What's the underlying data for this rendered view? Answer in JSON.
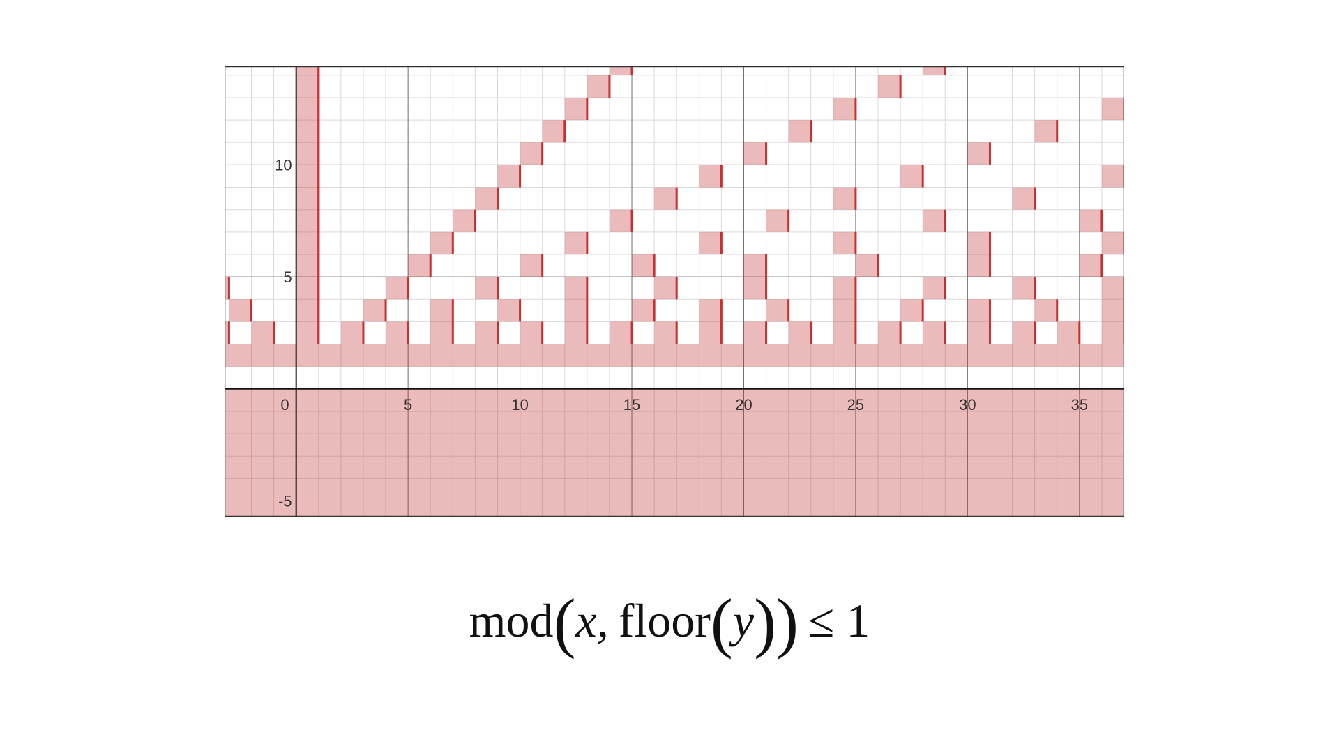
{
  "chart_data": {
    "type": "region",
    "title": "",
    "xlabel": "",
    "ylabel": "",
    "xlim": [
      -3.2,
      37
    ],
    "ylim": [
      -5.7,
      14.4
    ],
    "x_ticks": [
      0,
      5,
      10,
      15,
      20,
      25,
      30,
      35
    ],
    "y_ticks": [
      -5,
      5,
      10
    ],
    "x_tick_labels": [
      "0",
      "5",
      "10",
      "15",
      "20",
      "25",
      "30",
      "35"
    ],
    "y_tick_labels": [
      "-5",
      "5",
      "10"
    ],
    "minor_grid_step": 1,
    "major_grid_step": 5,
    "grid": true,
    "fill_color": "#c0302f",
    "fill_opacity": 0.33,
    "edge_color": "#c8302f",
    "inequality": "mod(x, floor(y)) <= 1",
    "regions": "union over integer n of n <= y < n+1 where x mod n <= 1; for n < 0 the whole row is shaded; for n = 0 undefined (unshaded)"
  },
  "formula": {
    "func": "mod",
    "var_x": "x,",
    "floor": "floor",
    "var_y": "y",
    "relation": "≤ 1"
  },
  "colors": {
    "background": "#ffffff",
    "minor_grid": "#d9d9d9",
    "major_grid": "#6e6e6e",
    "axis": "#111111",
    "frame": "#333333"
  }
}
